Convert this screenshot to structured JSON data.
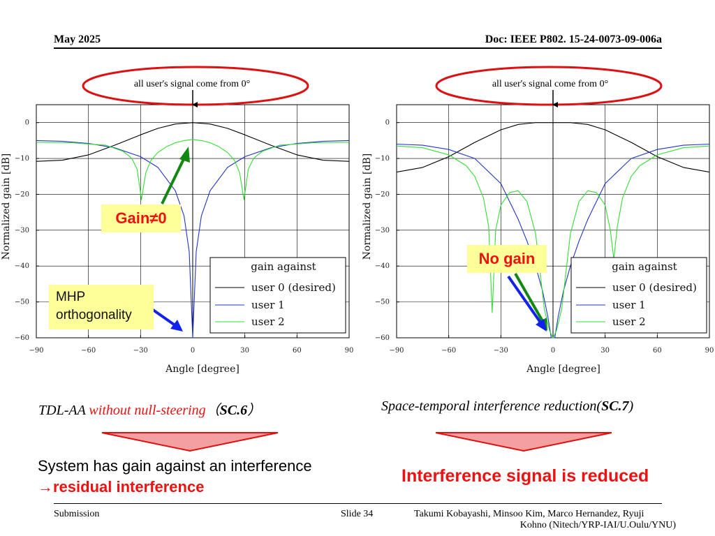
{
  "header": {
    "date": "May 2025",
    "doc": "Doc: IEEE P802. 15-24-0073-09-006a"
  },
  "footer": {
    "left": "Submission",
    "center": "Slide 34",
    "right_line1": "Takumi Kobayashi, Minsoo Kim, Marco Hernandez, Ryuji",
    "right_line2": "Kohno (Nitech/YRP-IAI/U.Oulu/YNU)"
  },
  "colors": {
    "user0": "#000000",
    "user1": "#2233cc",
    "user2": "#33dd33",
    "callout_ellipse": "#dd1111",
    "green_arrow": "#118811",
    "blue_arrow": "#1122ee",
    "note_bg": "#ffff99",
    "red_text": "#ee1111",
    "triangle_fill": "#f5a0a0",
    "triangle_stroke": "#dd1111"
  },
  "callouts": {
    "left": "all user's signal come from 0°",
    "right": "all user's signal come from 0°"
  },
  "notes": {
    "gain": "Gain≠0",
    "mhp_line1": "MHP",
    "mhp_line2": "orthogonality",
    "no_gain": "No gain"
  },
  "captions": {
    "left_a": "TDL-AA ",
    "left_b": "without null-steering",
    "left_c": "（",
    "left_d": "SC.6",
    "left_e": "）",
    "right_a": "Space-temporal interference reduction(",
    "right_b": "SC.7",
    "right_c": ")"
  },
  "conclusions": {
    "left_line1": "System has gain against an interference",
    "left_line2": "→residual interference",
    "right": "Interference signal is reduced"
  },
  "chart_data": [
    {
      "type": "line",
      "xlabel": "Angle [degree]",
      "ylabel": "Normalized gain [dB]",
      "xlim": [
        -90,
        90
      ],
      "ylim": [
        -60,
        5
      ],
      "xticks": [
        -90,
        -60,
        -30,
        0,
        30,
        60,
        90
      ],
      "yticks": [
        0,
        -10,
        -20,
        -30,
        -40,
        -50,
        -60
      ],
      "grid": true,
      "legend_title": "gain against",
      "legend_position": "bottom-right",
      "series": [
        {
          "name": "user 0 (desired)",
          "color": "#000000",
          "x": [
            -90,
            -75,
            -60,
            -45,
            -30,
            -20,
            -10,
            0,
            10,
            20,
            30,
            45,
            60,
            75,
            90
          ],
          "y": [
            -10.8,
            -10.5,
            -9,
            -6.3,
            -3.4,
            -1.6,
            -0.4,
            0,
            -0.4,
            -1.6,
            -3.4,
            -6.3,
            -9,
            -10.5,
            -10.8
          ]
        },
        {
          "name": "user 1",
          "color": "#2233cc",
          "x": [
            -90,
            -75,
            -60,
            -45,
            -30,
            -20,
            -10,
            -5,
            -2,
            0,
            2,
            5,
            10,
            20,
            30,
            45,
            60,
            75,
            90
          ],
          "y": [
            -5,
            -5.2,
            -5.8,
            -7,
            -9.5,
            -12.5,
            -19,
            -26,
            -36,
            -60,
            -36,
            -26,
            -19,
            -12.5,
            -9.5,
            -7,
            -5.8,
            -5.2,
            -5
          ]
        },
        {
          "name": "user 2",
          "color": "#33dd33",
          "x": [
            -90,
            -70,
            -50,
            -40,
            -35,
            -32,
            -29.5,
            -27,
            -24,
            -20,
            -15,
            -10,
            -5,
            0,
            5,
            10,
            15,
            20,
            24,
            27,
            29.5,
            32,
            35,
            40,
            50,
            70,
            90
          ],
          "y": [
            -5.5,
            -5.6,
            -6.3,
            -8,
            -10,
            -13,
            -21.5,
            -14,
            -10.5,
            -8.3,
            -6.7,
            -5.6,
            -5,
            -4.7,
            -5,
            -5.6,
            -6.7,
            -8.3,
            -10.5,
            -14,
            -21.5,
            -13,
            -10,
            -8,
            -6.3,
            -5.6,
            -5.5
          ]
        }
      ]
    },
    {
      "type": "line",
      "xlabel": "Angle [degree]",
      "ylabel": "Normalized gain [dB]",
      "xlim": [
        -90,
        90
      ],
      "ylim": [
        -60,
        5
      ],
      "xticks": [
        -90,
        -60,
        -30,
        0,
        30,
        60,
        90
      ],
      "yticks": [
        0,
        -10,
        -20,
        -30,
        -40,
        -50,
        -60
      ],
      "grid": true,
      "legend_title": "gain against",
      "legend_position": "bottom-right",
      "series": [
        {
          "name": "user 0 (desired)",
          "color": "#000000",
          "x": [
            -90,
            -75,
            -60,
            -45,
            -30,
            -20,
            -10,
            0,
            10,
            20,
            30,
            45,
            60,
            75,
            90
          ],
          "y": [
            -13.8,
            -12.5,
            -9.5,
            -5.5,
            -2,
            -0.5,
            0,
            0,
            0,
            -0.5,
            -2,
            -5.5,
            -9.5,
            -12.5,
            -13.8
          ]
        },
        {
          "name": "user 1",
          "color": "#2233cc",
          "x": [
            -90,
            -75,
            -60,
            -45,
            -30,
            -20,
            -15,
            -10,
            -6,
            -3,
            -1,
            0,
            1,
            3,
            6,
            10,
            15,
            20,
            30,
            45,
            60,
            75,
            90
          ],
          "y": [
            -6,
            -6.3,
            -7.5,
            -10,
            -17,
            -27,
            -33,
            -40,
            -47,
            -54,
            -60,
            -60,
            -60,
            -54,
            -47,
            -40,
            -33,
            -27,
            -17,
            -10,
            -7.5,
            -6.3,
            -6
          ]
        },
        {
          "name": "user 2",
          "color": "#33dd33",
          "x": [
            -90,
            -75,
            -60,
            -50,
            -45,
            -40,
            -37,
            -35,
            -33,
            -30,
            -25,
            -20,
            -15,
            -10,
            -5,
            -2,
            0,
            2,
            5,
            10,
            15,
            20,
            25,
            30,
            33,
            35,
            37,
            40,
            45,
            50,
            60,
            75,
            90
          ],
          "y": [
            -6.5,
            -7,
            -9,
            -12,
            -15,
            -21,
            -29,
            -53,
            -30,
            -23,
            -19.5,
            -19,
            -22,
            -31,
            -52,
            -58,
            -60,
            -58,
            -52,
            -31,
            -22,
            -19,
            -19.5,
            -23,
            -30,
            -38,
            -29,
            -21,
            -15,
            -12,
            -9,
            -7,
            -6.5
          ]
        }
      ]
    }
  ]
}
